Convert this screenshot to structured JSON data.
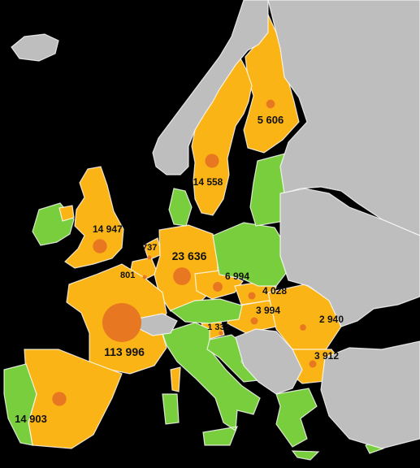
{
  "legend_colors": {
    "highlighted": "#FBB416",
    "other_eu": "#79CE3D",
    "non_eu": "#BEBEBE",
    "bubble": "#E87722",
    "background": "#000000",
    "text": "#111111"
  },
  "regions": [
    {
      "id": "finland",
      "category": "highlighted"
    },
    {
      "id": "sweden",
      "category": "highlighted"
    },
    {
      "id": "uk",
      "category": "highlighted"
    },
    {
      "id": "netherlands",
      "category": "highlighted"
    },
    {
      "id": "belgium",
      "category": "highlighted"
    },
    {
      "id": "germany",
      "category": "highlighted"
    },
    {
      "id": "france",
      "category": "highlighted"
    },
    {
      "id": "spain",
      "category": "highlighted"
    },
    {
      "id": "czechia",
      "category": "highlighted"
    },
    {
      "id": "slovakia",
      "category": "highlighted"
    },
    {
      "id": "hungary",
      "category": "highlighted"
    },
    {
      "id": "romania",
      "category": "highlighted"
    },
    {
      "id": "bulgaria",
      "category": "highlighted"
    },
    {
      "id": "slovenia",
      "category": "highlighted"
    },
    {
      "id": "ireland",
      "category": "other_eu"
    },
    {
      "id": "portugal",
      "category": "other_eu"
    },
    {
      "id": "denmark",
      "category": "other_eu"
    },
    {
      "id": "poland",
      "category": "other_eu"
    },
    {
      "id": "baltics",
      "category": "other_eu"
    },
    {
      "id": "italy",
      "category": "other_eu"
    },
    {
      "id": "austria",
      "category": "other_eu"
    },
    {
      "id": "croatia",
      "category": "other_eu"
    },
    {
      "id": "greece",
      "category": "other_eu"
    },
    {
      "id": "cyprus",
      "category": "other_eu"
    },
    {
      "id": "norway",
      "category": "non_eu"
    },
    {
      "id": "iceland",
      "category": "non_eu"
    },
    {
      "id": "russia",
      "category": "non_eu"
    },
    {
      "id": "belarus_ukraine",
      "category": "non_eu"
    },
    {
      "id": "balkans",
      "category": "non_eu"
    },
    {
      "id": "turkey",
      "category": "non_eu"
    },
    {
      "id": "switzerland",
      "category": "non_eu"
    },
    {
      "id": "northern_ireland",
      "category": "highlighted"
    }
  ],
  "values": [
    {
      "id": "finland",
      "value": 5606,
      "label": "5 606"
    },
    {
      "id": "sweden",
      "value": 14558,
      "label": "14 558"
    },
    {
      "id": "uk",
      "value": 14947,
      "label": "14 947"
    },
    {
      "id": "netherlands",
      "value": 737,
      "label": "737"
    },
    {
      "id": "belgium",
      "value": 801,
      "label": "801"
    },
    {
      "id": "germany",
      "value": 23636,
      "label": "23 636"
    },
    {
      "id": "czechia",
      "value": 6994,
      "label": "6 994"
    },
    {
      "id": "slovakia",
      "value": 4028,
      "label": "4 028"
    },
    {
      "id": "hungary",
      "value": 3994,
      "label": "3 994"
    },
    {
      "id": "romania",
      "value": 2940,
      "label": "2 940"
    },
    {
      "id": "slovenia",
      "value": 1332,
      "label": "1 332"
    },
    {
      "id": "bulgaria",
      "value": 3912,
      "label": "3 912"
    },
    {
      "id": "france",
      "value": 113996,
      "label": "113 996"
    },
    {
      "id": "spain",
      "value": 14903,
      "label": "14 903"
    }
  ]
}
